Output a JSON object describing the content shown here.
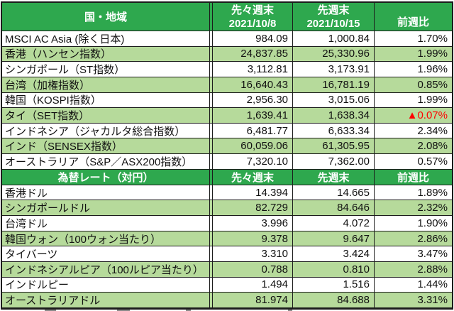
{
  "table": {
    "colors": {
      "header_green": "#2ea84e",
      "stripe_green": "#b6da9b",
      "negative_red": "#ff0000",
      "border": "#1c1c1c"
    },
    "sections": [
      {
        "header": {
          "label": "国・地域",
          "prev2_line1": "先々週末",
          "prev2_line2": "2021/10/8",
          "prev1_line1": "先週末",
          "prev1_line2": "2021/10/15",
          "change_label": "前週比"
        },
        "rows": [
          {
            "name": "MSCI AC Asia (除く日本)",
            "prev2": "984.09",
            "prev1": "1,000.84",
            "change": "1.70%"
          },
          {
            "name": "香港（ハンセン指数）",
            "prev2": "24,837.85",
            "prev1": "25,330.96",
            "change": "1.99%"
          },
          {
            "name": "シンガポール（ST指数）",
            "prev2": "3,112.81",
            "prev1": "3,173.91",
            "change": "1.96%"
          },
          {
            "name": "台湾（加権指数）",
            "prev2": "16,640.43",
            "prev1": "16,781.19",
            "change": "0.85%"
          },
          {
            "name": "韓国（KOSPI指数）",
            "prev2": "2,956.30",
            "prev1": "3,015.06",
            "change": "1.99%"
          },
          {
            "name": "タイ（SET指数）",
            "prev2": "1,639.41",
            "prev1": "1,638.34",
            "change": "▲0.07%",
            "negative": true
          },
          {
            "name": "インドネシア（ジャカルタ総合指数）",
            "prev2": "6,481.77",
            "prev1": "6,633.34",
            "change": "2.34%"
          },
          {
            "name": "インド（SENSEX指数）",
            "prev2": "60,059.06",
            "prev1": "61,305.95",
            "change": "2.08%"
          },
          {
            "name": "オーストラリア（S&P／ASX200指数）",
            "prev2": "7,320.10",
            "prev1": "7,362.00",
            "change": "0.57%"
          }
        ]
      },
      {
        "header": {
          "label": "為替レート（対円）",
          "prev2_label": "先々週末",
          "prev1_label": "先週末",
          "change_label": "前週比"
        },
        "rows": [
          {
            "name": "香港ドル",
            "prev2": "14.394",
            "prev1": "14.665",
            "change": "1.89%"
          },
          {
            "name": "シンガポールドル",
            "prev2": "82.729",
            "prev1": "84.646",
            "change": "2.32%"
          },
          {
            "name": "台湾ドル",
            "prev2": "3.996",
            "prev1": "4.072",
            "change": "1.90%"
          },
          {
            "name": "韓国ウォン（100ウォン当たり）",
            "prev2": "9.378",
            "prev1": "9.647",
            "change": "2.86%"
          },
          {
            "name": "タイバーツ",
            "prev2": "3.310",
            "prev1": "3.424",
            "change": "3.47%"
          },
          {
            "name": "インドネシアルピア（100ルピア当たり）",
            "prev2": "0.788",
            "prev1": "0.810",
            "change": "2.88%"
          },
          {
            "name": "インドルピー",
            "prev2": "1.494",
            "prev1": "1.516",
            "change": "1.44%"
          },
          {
            "name": "オーストラリアドル",
            "prev2": "81.974",
            "prev1": "84.688",
            "change": "3.31%"
          }
        ]
      }
    ]
  }
}
